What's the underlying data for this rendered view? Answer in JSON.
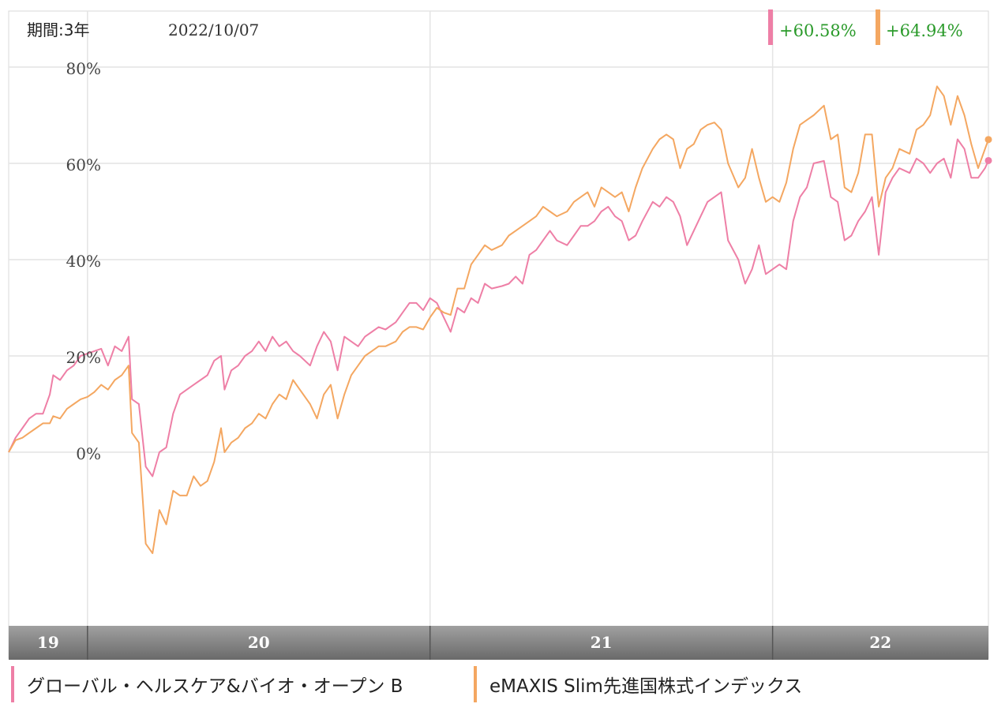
{
  "header": {
    "period": "期間:3年",
    "date": "2022/10/07"
  },
  "chart_data": {
    "type": "line",
    "ylim": [
      -35,
      90
    ],
    "yticks": [
      0,
      20,
      40,
      60,
      80
    ],
    "ytick_labels": [
      "0%",
      "20%",
      "40%",
      "60%",
      "80%"
    ],
    "year_labels": [
      "19",
      "20",
      "21",
      "22"
    ],
    "grid": true,
    "series": [
      {
        "name": "グローバル・ヘルスケア&バイオ・オープン B",
        "color": "#ee7fa6",
        "final_label": "+60.58%",
        "points": [
          [
            2019.77,
            0
          ],
          [
            2019.79,
            3
          ],
          [
            2019.81,
            5
          ],
          [
            2019.83,
            7
          ],
          [
            2019.85,
            8
          ],
          [
            2019.87,
            8
          ],
          [
            2019.89,
            12
          ],
          [
            2019.9,
            16
          ],
          [
            2019.92,
            15
          ],
          [
            2019.94,
            17
          ],
          [
            2019.96,
            18
          ],
          [
            2019.98,
            20
          ],
          [
            2020.0,
            20.5
          ],
          [
            2020.02,
            21
          ],
          [
            2020.04,
            21.5
          ],
          [
            2020.06,
            18
          ],
          [
            2020.08,
            22
          ],
          [
            2020.1,
            21
          ],
          [
            2020.12,
            24
          ],
          [
            2020.13,
            11
          ],
          [
            2020.15,
            10
          ],
          [
            2020.17,
            -3
          ],
          [
            2020.19,
            -5
          ],
          [
            2020.21,
            0
          ],
          [
            2020.23,
            1
          ],
          [
            2020.25,
            8
          ],
          [
            2020.27,
            12
          ],
          [
            2020.29,
            13
          ],
          [
            2020.31,
            14
          ],
          [
            2020.33,
            15
          ],
          [
            2020.35,
            16
          ],
          [
            2020.37,
            19
          ],
          [
            2020.39,
            20
          ],
          [
            2020.4,
            13
          ],
          [
            2020.42,
            17
          ],
          [
            2020.44,
            18
          ],
          [
            2020.46,
            20
          ],
          [
            2020.48,
            21
          ],
          [
            2020.5,
            23
          ],
          [
            2020.52,
            21
          ],
          [
            2020.54,
            24
          ],
          [
            2020.56,
            22
          ],
          [
            2020.58,
            23
          ],
          [
            2020.6,
            21
          ],
          [
            2020.62,
            20
          ],
          [
            2020.65,
            18
          ],
          [
            2020.67,
            22
          ],
          [
            2020.69,
            25
          ],
          [
            2020.71,
            23
          ],
          [
            2020.73,
            17
          ],
          [
            2020.75,
            24
          ],
          [
            2020.77,
            23
          ],
          [
            2020.79,
            22
          ],
          [
            2020.81,
            24
          ],
          [
            2020.83,
            25
          ],
          [
            2020.85,
            26
          ],
          [
            2020.87,
            25.5
          ],
          [
            2020.9,
            27
          ],
          [
            2020.92,
            29
          ],
          [
            2020.94,
            31
          ],
          [
            2020.96,
            31
          ],
          [
            2020.98,
            29.5
          ],
          [
            2021.0,
            32
          ],
          [
            2021.02,
            31
          ],
          [
            2021.04,
            28
          ],
          [
            2021.06,
            25
          ],
          [
            2021.08,
            30
          ],
          [
            2021.1,
            29
          ],
          [
            2021.12,
            32
          ],
          [
            2021.14,
            31
          ],
          [
            2021.16,
            35
          ],
          [
            2021.18,
            34
          ],
          [
            2021.21,
            34.5
          ],
          [
            2021.23,
            35
          ],
          [
            2021.25,
            36.5
          ],
          [
            2021.27,
            35
          ],
          [
            2021.29,
            41
          ],
          [
            2021.31,
            42
          ],
          [
            2021.33,
            44
          ],
          [
            2021.35,
            46
          ],
          [
            2021.37,
            44
          ],
          [
            2021.4,
            43
          ],
          [
            2021.42,
            45
          ],
          [
            2021.44,
            47
          ],
          [
            2021.46,
            47
          ],
          [
            2021.48,
            48
          ],
          [
            2021.5,
            50
          ],
          [
            2021.52,
            51
          ],
          [
            2021.54,
            49
          ],
          [
            2021.56,
            48
          ],
          [
            2021.58,
            44
          ],
          [
            2021.6,
            45
          ],
          [
            2021.62,
            48
          ],
          [
            2021.65,
            52
          ],
          [
            2021.67,
            51
          ],
          [
            2021.69,
            53
          ],
          [
            2021.71,
            52
          ],
          [
            2021.73,
            49
          ],
          [
            2021.75,
            43
          ],
          [
            2021.77,
            46
          ],
          [
            2021.79,
            49
          ],
          [
            2021.81,
            52
          ],
          [
            2021.83,
            53
          ],
          [
            2021.85,
            54
          ],
          [
            2021.87,
            44
          ],
          [
            2021.9,
            40
          ],
          [
            2021.92,
            35
          ],
          [
            2021.94,
            38
          ],
          [
            2021.96,
            43
          ],
          [
            2021.98,
            37
          ],
          [
            2022.0,
            38
          ],
          [
            2022.02,
            39
          ],
          [
            2022.04,
            38
          ],
          [
            2022.06,
            48
          ],
          [
            2022.08,
            53
          ],
          [
            2022.1,
            55
          ],
          [
            2022.12,
            60
          ],
          [
            2022.15,
            60.5
          ],
          [
            2022.17,
            53
          ],
          [
            2022.19,
            52
          ],
          [
            2022.21,
            44
          ],
          [
            2022.23,
            45
          ],
          [
            2022.25,
            48
          ],
          [
            2022.27,
            50
          ],
          [
            2022.29,
            53
          ],
          [
            2022.31,
            41
          ],
          [
            2022.33,
            54
          ],
          [
            2022.35,
            57
          ],
          [
            2022.37,
            59
          ],
          [
            2022.4,
            58
          ],
          [
            2022.42,
            61
          ],
          [
            2022.44,
            60
          ],
          [
            2022.46,
            58
          ],
          [
            2022.48,
            60
          ],
          [
            2022.5,
            61
          ],
          [
            2022.52,
            57
          ],
          [
            2022.54,
            65
          ],
          [
            2022.56,
            63
          ],
          [
            2022.58,
            57
          ],
          [
            2022.6,
            57
          ],
          [
            2022.62,
            59
          ],
          [
            2022.63,
            60.58
          ]
        ]
      },
      {
        "name": "eMAXIS Slim先進国株式インデックス",
        "color": "#f4a761",
        "final_label": "+64.94%",
        "points": [
          [
            2019.77,
            0
          ],
          [
            2019.79,
            2.5
          ],
          [
            2019.81,
            3
          ],
          [
            2019.83,
            4
          ],
          [
            2019.85,
            5
          ],
          [
            2019.87,
            6
          ],
          [
            2019.89,
            6
          ],
          [
            2019.9,
            7.5
          ],
          [
            2019.92,
            7
          ],
          [
            2019.94,
            9
          ],
          [
            2019.96,
            10
          ],
          [
            2019.98,
            11
          ],
          [
            2020.0,
            11.5
          ],
          [
            2020.02,
            12.5
          ],
          [
            2020.04,
            14
          ],
          [
            2020.06,
            13
          ],
          [
            2020.08,
            15
          ],
          [
            2020.1,
            16
          ],
          [
            2020.12,
            18
          ],
          [
            2020.13,
            4
          ],
          [
            2020.15,
            2
          ],
          [
            2020.17,
            -19
          ],
          [
            2020.19,
            -21
          ],
          [
            2020.21,
            -12
          ],
          [
            2020.23,
            -15
          ],
          [
            2020.25,
            -8
          ],
          [
            2020.27,
            -9
          ],
          [
            2020.29,
            -9
          ],
          [
            2020.31,
            -5
          ],
          [
            2020.33,
            -7
          ],
          [
            2020.35,
            -6
          ],
          [
            2020.37,
            -2
          ],
          [
            2020.39,
            5
          ],
          [
            2020.4,
            0
          ],
          [
            2020.42,
            2
          ],
          [
            2020.44,
            3
          ],
          [
            2020.46,
            5
          ],
          [
            2020.48,
            6
          ],
          [
            2020.5,
            8
          ],
          [
            2020.52,
            7
          ],
          [
            2020.54,
            10
          ],
          [
            2020.56,
            12
          ],
          [
            2020.58,
            11
          ],
          [
            2020.6,
            15
          ],
          [
            2020.62,
            13
          ],
          [
            2020.65,
            10
          ],
          [
            2020.67,
            7
          ],
          [
            2020.69,
            12
          ],
          [
            2020.71,
            14
          ],
          [
            2020.73,
            7
          ],
          [
            2020.75,
            12
          ],
          [
            2020.77,
            16
          ],
          [
            2020.79,
            18
          ],
          [
            2020.81,
            20
          ],
          [
            2020.83,
            21
          ],
          [
            2020.85,
            22
          ],
          [
            2020.87,
            22
          ],
          [
            2020.9,
            23
          ],
          [
            2020.92,
            25
          ],
          [
            2020.94,
            26
          ],
          [
            2020.96,
            26
          ],
          [
            2020.98,
            25.5
          ],
          [
            2021.0,
            28
          ],
          [
            2021.02,
            30
          ],
          [
            2021.04,
            29
          ],
          [
            2021.06,
            28.5
          ],
          [
            2021.08,
            34
          ],
          [
            2021.1,
            34
          ],
          [
            2021.12,
            39
          ],
          [
            2021.14,
            41
          ],
          [
            2021.16,
            43
          ],
          [
            2021.18,
            42
          ],
          [
            2021.21,
            43
          ],
          [
            2021.23,
            45
          ],
          [
            2021.25,
            46
          ],
          [
            2021.27,
            47
          ],
          [
            2021.29,
            48
          ],
          [
            2021.31,
            49
          ],
          [
            2021.33,
            51
          ],
          [
            2021.35,
            50
          ],
          [
            2021.37,
            49
          ],
          [
            2021.4,
            50
          ],
          [
            2021.42,
            52
          ],
          [
            2021.44,
            53
          ],
          [
            2021.46,
            54
          ],
          [
            2021.48,
            51
          ],
          [
            2021.5,
            55
          ],
          [
            2021.52,
            54
          ],
          [
            2021.54,
            53
          ],
          [
            2021.56,
            54
          ],
          [
            2021.58,
            50
          ],
          [
            2021.6,
            55
          ],
          [
            2021.62,
            59
          ],
          [
            2021.65,
            63
          ],
          [
            2021.67,
            65
          ],
          [
            2021.69,
            66
          ],
          [
            2021.71,
            65
          ],
          [
            2021.73,
            59
          ],
          [
            2021.75,
            63
          ],
          [
            2021.77,
            64
          ],
          [
            2021.79,
            67
          ],
          [
            2021.81,
            68
          ],
          [
            2021.83,
            68.5
          ],
          [
            2021.85,
            67
          ],
          [
            2021.87,
            60
          ],
          [
            2021.9,
            55
          ],
          [
            2021.92,
            57
          ],
          [
            2021.94,
            63
          ],
          [
            2021.96,
            57
          ],
          [
            2021.98,
            52
          ],
          [
            2022.0,
            53
          ],
          [
            2022.02,
            52
          ],
          [
            2022.04,
            56
          ],
          [
            2022.06,
            63
          ],
          [
            2022.08,
            68
          ],
          [
            2022.1,
            69
          ],
          [
            2022.12,
            70
          ],
          [
            2022.15,
            72
          ],
          [
            2022.17,
            65
          ],
          [
            2022.19,
            66
          ],
          [
            2022.21,
            55
          ],
          [
            2022.23,
            54
          ],
          [
            2022.25,
            58
          ],
          [
            2022.27,
            66
          ],
          [
            2022.29,
            66
          ],
          [
            2022.31,
            51
          ],
          [
            2022.33,
            57
          ],
          [
            2022.35,
            59
          ],
          [
            2022.37,
            63
          ],
          [
            2022.4,
            62
          ],
          [
            2022.42,
            67
          ],
          [
            2022.44,
            68
          ],
          [
            2022.46,
            70
          ],
          [
            2022.48,
            76
          ],
          [
            2022.5,
            74
          ],
          [
            2022.52,
            68
          ],
          [
            2022.54,
            74
          ],
          [
            2022.56,
            70
          ],
          [
            2022.58,
            64
          ],
          [
            2022.6,
            59
          ],
          [
            2022.62,
            63
          ],
          [
            2022.63,
            64.94
          ]
        ]
      }
    ]
  }
}
